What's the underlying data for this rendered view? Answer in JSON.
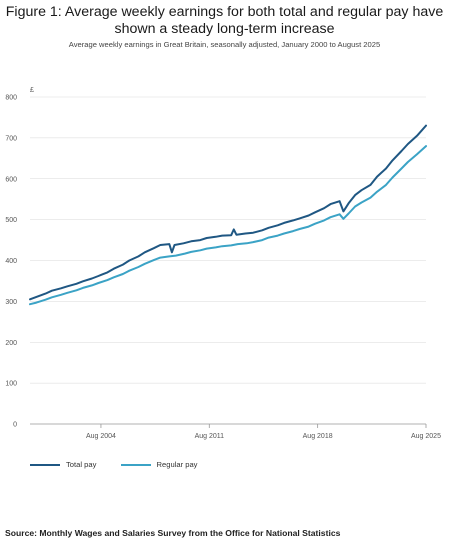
{
  "title_line1": "Figure 1: Average weekly earnings for both total and regular pay have",
  "title_line2": "shown a steady long-term increase",
  "subtitle": "Average weekly earnings in Great Britain, seasonally adjusted, January 2000 to August 2025",
  "source": "Source: Monthly Wages and Salaries Survey from the Office for National Statistics",
  "colors": {
    "total": "#1f5783",
    "regular": "#3ba3c6",
    "grid": "#d9d9d9",
    "axis": "#999999",
    "text": "#555555"
  },
  "chart_data": {
    "type": "line",
    "ylabel": "£",
    "xlabel": "",
    "ylim": [
      0,
      800
    ],
    "xlim": [
      "2000-01",
      "2025-08"
    ],
    "yticks": [
      "0",
      "100",
      "200",
      "300",
      "400",
      "500",
      "600",
      "700",
      "800"
    ],
    "xticks": [
      {
        "date": "2004-08",
        "label": "Aug 2004"
      },
      {
        "date": "2011-08",
        "label": "Aug 2011"
      },
      {
        "date": "2018-08",
        "label": "Aug 2018"
      },
      {
        "date": "2025-08",
        "label": "Aug 2025"
      }
    ],
    "grid": true,
    "legend_position": "bottom-left",
    "series": [
      {
        "name": "Total pay",
        "color": "#1f5783",
        "points": [
          [
            "2000-01",
            305
          ],
          [
            "2000-06",
            311
          ],
          [
            "2001-01",
            319
          ],
          [
            "2001-06",
            326
          ],
          [
            "2002-01",
            332
          ],
          [
            "2002-06",
            337
          ],
          [
            "2003-01",
            343
          ],
          [
            "2003-06",
            349
          ],
          [
            "2004-01",
            356
          ],
          [
            "2004-06",
            362
          ],
          [
            "2004-09",
            366
          ],
          [
            "2005-01",
            371
          ],
          [
            "2005-06",
            380
          ],
          [
            "2006-01",
            390
          ],
          [
            "2006-06",
            400
          ],
          [
            "2007-01",
            410
          ],
          [
            "2007-06",
            420
          ],
          [
            "2008-01",
            430
          ],
          [
            "2008-06",
            438
          ],
          [
            "2009-01",
            440
          ],
          [
            "2009-03",
            420
          ],
          [
            "2009-05",
            438
          ],
          [
            "2009-12",
            442
          ],
          [
            "2010-06",
            447
          ],
          [
            "2011-01",
            450
          ],
          [
            "2011-06",
            455
          ],
          [
            "2012-01",
            458
          ],
          [
            "2012-06",
            461
          ],
          [
            "2013-01",
            462
          ],
          [
            "2013-03",
            476
          ],
          [
            "2013-05",
            463
          ],
          [
            "2013-12",
            466
          ],
          [
            "2014-06",
            468
          ],
          [
            "2015-01",
            474
          ],
          [
            "2015-06",
            480
          ],
          [
            "2016-01",
            486
          ],
          [
            "2016-06",
            492
          ],
          [
            "2017-01",
            498
          ],
          [
            "2017-06",
            503
          ],
          [
            "2018-01",
            510
          ],
          [
            "2018-06",
            518
          ],
          [
            "2019-01",
            528
          ],
          [
            "2019-06",
            538
          ],
          [
            "2020-01",
            545
          ],
          [
            "2020-04",
            520
          ],
          [
            "2020-08",
            540
          ],
          [
            "2021-01",
            560
          ],
          [
            "2021-06",
            572
          ],
          [
            "2022-01",
            585
          ],
          [
            "2022-06",
            605
          ],
          [
            "2023-01",
            625
          ],
          [
            "2023-06",
            645
          ],
          [
            "2024-01",
            668
          ],
          [
            "2024-06",
            685
          ],
          [
            "2025-01",
            705
          ],
          [
            "2025-08",
            730
          ]
        ]
      },
      {
        "name": "Regular pay",
        "color": "#3ba3c6",
        "points": [
          [
            "2000-01",
            293
          ],
          [
            "2000-06",
            297
          ],
          [
            "2001-01",
            304
          ],
          [
            "2001-06",
            310
          ],
          [
            "2002-01",
            316
          ],
          [
            "2002-06",
            321
          ],
          [
            "2003-01",
            327
          ],
          [
            "2003-06",
            333
          ],
          [
            "2004-01",
            339
          ],
          [
            "2004-06",
            345
          ],
          [
            "2005-01",
            352
          ],
          [
            "2005-06",
            359
          ],
          [
            "2006-01",
            367
          ],
          [
            "2006-06",
            375
          ],
          [
            "2007-01",
            384
          ],
          [
            "2007-06",
            392
          ],
          [
            "2008-01",
            401
          ],
          [
            "2008-06",
            407
          ],
          [
            "2009-01",
            410
          ],
          [
            "2009-06",
            412
          ],
          [
            "2010-01",
            417
          ],
          [
            "2010-06",
            421
          ],
          [
            "2011-01",
            425
          ],
          [
            "2011-06",
            429
          ],
          [
            "2012-01",
            432
          ],
          [
            "2012-06",
            435
          ],
          [
            "2013-01",
            437
          ],
          [
            "2013-06",
            440
          ],
          [
            "2014-01",
            442
          ],
          [
            "2014-06",
            445
          ],
          [
            "2015-01",
            450
          ],
          [
            "2015-06",
            456
          ],
          [
            "2016-01",
            461
          ],
          [
            "2016-06",
            466
          ],
          [
            "2017-01",
            472
          ],
          [
            "2017-06",
            477
          ],
          [
            "2018-01",
            483
          ],
          [
            "2018-06",
            490
          ],
          [
            "2019-01",
            498
          ],
          [
            "2019-06",
            506
          ],
          [
            "2020-01",
            513
          ],
          [
            "2020-04",
            502
          ],
          [
            "2020-08",
            515
          ],
          [
            "2021-01",
            532
          ],
          [
            "2021-06",
            542
          ],
          [
            "2022-01",
            554
          ],
          [
            "2022-06",
            568
          ],
          [
            "2023-01",
            585
          ],
          [
            "2023-06",
            603
          ],
          [
            "2024-01",
            625
          ],
          [
            "2024-06",
            641
          ],
          [
            "2025-01",
            660
          ],
          [
            "2025-08",
            680
          ]
        ]
      }
    ]
  }
}
